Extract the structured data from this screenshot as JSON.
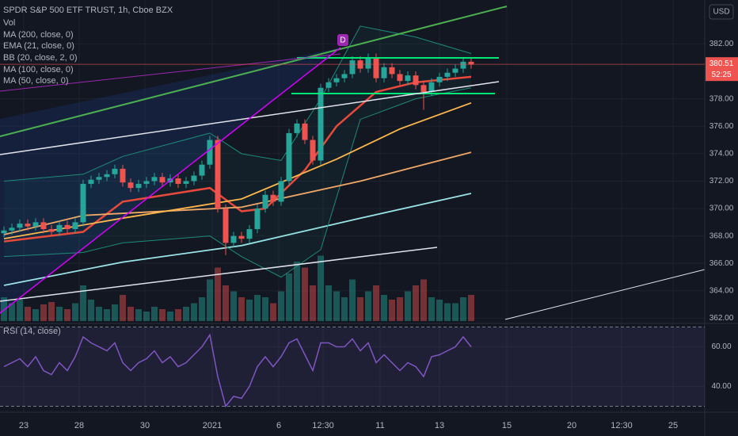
{
  "chart_data": {
    "type": "candlestick",
    "title": "SPDR S&P 500 ETF TRUST, 1h, Cboe BZX",
    "currency": "USD",
    "marker": "D",
    "up_color": "#26a69a",
    "down_color": "#ef5350",
    "grid": true,
    "xlim": [
      -0.5,
      88.5
    ],
    "xticks": [
      {
        "value": 2.5,
        "label": "23"
      },
      {
        "value": 9.5,
        "label": "28"
      },
      {
        "value": 17.8,
        "label": "30"
      },
      {
        "value": 26.3,
        "label": "2021"
      },
      {
        "value": 34.7,
        "label": "6"
      },
      {
        "value": 40.3,
        "label": "12:30"
      },
      {
        "value": 47.5,
        "label": "11"
      },
      {
        "value": 55,
        "label": "13"
      },
      {
        "value": 63.5,
        "label": "15"
      },
      {
        "value": 71.7,
        "label": "20"
      },
      {
        "value": 78,
        "label": "12:30"
      },
      {
        "value": 84.5,
        "label": "25"
      }
    ],
    "ylim": [
      361.8,
      385.2
    ],
    "yticks": [
      {
        "value": 362,
        "label": "362.00"
      },
      {
        "value": 364,
        "label": "364.00"
      },
      {
        "value": 366,
        "label": "366.00"
      },
      {
        "value": 368,
        "label": "368.00"
      },
      {
        "value": 370,
        "label": "370.00"
      },
      {
        "value": 372,
        "label": "372.00"
      },
      {
        "value": 374,
        "label": "374.00"
      },
      {
        "value": 376,
        "label": "376.00"
      },
      {
        "value": 378,
        "label": "378.00"
      },
      {
        "value": 382,
        "label": "382.00"
      }
    ],
    "last_price": 380.51,
    "countdown": "52:25",
    "open": [
      368.2,
      368.4,
      368.6,
      368.9,
      368.7,
      369.0,
      368.5,
      368.3,
      368.8,
      368.5,
      369.0,
      371.8,
      372.1,
      372.3,
      372.5,
      372.9,
      371.9,
      371.5,
      371.8,
      372.0,
      372.3,
      371.9,
      372.2,
      371.8,
      372.0,
      372.4,
      373.2,
      375.0,
      370.0,
      367.5,
      368.0,
      367.8,
      368.5,
      370.0,
      371.0,
      370.5,
      372.0,
      375.5,
      376.2,
      375.0,
      373.5,
      378.8,
      379.2,
      379.5,
      379.8,
      380.8,
      380.2,
      381.0,
      379.5,
      380.3,
      379.8,
      379.3,
      379.7,
      379.0,
      378.5,
      379.2,
      379.6,
      379.9,
      380.2,
      380.7
    ],
    "high": [
      368.7,
      368.9,
      369.2,
      369.2,
      369.3,
      369.3,
      368.8,
      369.1,
      369.1,
      369.3,
      372.1,
      372.4,
      372.6,
      372.8,
      373.2,
      373.2,
      372.2,
      372.1,
      372.3,
      372.6,
      372.6,
      372.5,
      372.5,
      372.3,
      372.7,
      373.5,
      375.3,
      375.3,
      370.3,
      368.3,
      368.3,
      368.8,
      370.3,
      371.3,
      371.3,
      372.3,
      375.8,
      376.5,
      376.5,
      375.3,
      379.1,
      379.5,
      379.8,
      380.1,
      381.1,
      381.1,
      381.3,
      381.3,
      380.6,
      380.6,
      380.1,
      380.0,
      380.0,
      379.3,
      379.5,
      379.9,
      380.2,
      380.5,
      381.0,
      381.0
    ],
    "low": [
      367.9,
      368.1,
      368.3,
      368.4,
      368.4,
      368.2,
      368.0,
      368.0,
      368.2,
      368.2,
      368.7,
      371.5,
      371.8,
      372.0,
      372.2,
      371.6,
      371.2,
      371.2,
      371.5,
      371.7,
      371.6,
      371.6,
      371.5,
      371.5,
      371.7,
      372.1,
      372.9,
      369.7,
      366.6,
      367.2,
      367.5,
      367.5,
      368.2,
      369.7,
      370.2,
      370.2,
      371.7,
      375.2,
      374.7,
      373.2,
      373.2,
      378.5,
      378.9,
      379.2,
      379.5,
      379.9,
      379.9,
      379.2,
      379.2,
      379.5,
      379.0,
      379.0,
      378.7,
      377.2,
      378.2,
      378.9,
      379.3,
      379.6,
      379.9,
      380.2
    ],
    "close": [
      368.4,
      368.6,
      368.9,
      368.7,
      369.0,
      368.5,
      368.3,
      368.8,
      368.5,
      369.0,
      371.8,
      372.1,
      372.3,
      372.5,
      372.9,
      371.9,
      371.5,
      371.8,
      372.0,
      372.3,
      371.9,
      372.2,
      371.8,
      372.0,
      372.4,
      373.2,
      375.0,
      370.0,
      367.5,
      368.0,
      367.8,
      368.5,
      370.0,
      371.0,
      370.5,
      372.0,
      375.5,
      376.2,
      375.0,
      373.5,
      378.8,
      379.2,
      379.5,
      379.8,
      380.8,
      380.2,
      381.0,
      379.5,
      380.3,
      379.8,
      379.3,
      379.7,
      379.0,
      378.5,
      379.2,
      379.6,
      379.9,
      380.2,
      380.7,
      380.5
    ],
    "volume": {
      "name": "Vol",
      "ylim": [
        0,
        100
      ],
      "values": [
        20,
        15,
        18,
        12,
        10,
        14,
        16,
        12,
        10,
        15,
        30,
        18,
        12,
        10,
        14,
        22,
        12,
        10,
        8,
        12,
        10,
        8,
        10,
        12,
        15,
        20,
        35,
        45,
        30,
        25,
        20,
        18,
        22,
        20,
        15,
        25,
        40,
        50,
        45,
        30,
        55,
        30,
        25,
        20,
        35,
        20,
        25,
        30,
        22,
        18,
        20,
        25,
        30,
        35,
        20,
        18,
        15,
        15,
        20,
        22
      ]
    },
    "overlays": [
      {
        "name": "MA (200, close, 0)",
        "color": "#9be3e6",
        "x": [
          0,
          15,
          30,
          45,
          59
        ],
        "values": [
          364.4,
          366.1,
          367.3,
          369.3,
          371.1
        ]
      },
      {
        "name": "EMA (21, close, 0)",
        "color": "#f44336",
        "x": [
          0,
          10,
          15,
          26,
          30,
          33,
          38,
          42,
          47,
          52,
          59
        ],
        "values": [
          367.6,
          368.3,
          370.5,
          371.5,
          369.8,
          370.0,
          372.8,
          376.0,
          378.5,
          379.2,
          379.6
        ]
      },
      {
        "name": "BB (20, close, 2, 0)",
        "color": "#1e8a7a",
        "x": [
          0,
          10,
          15,
          26,
          30,
          35,
          40,
          45,
          52,
          59
        ],
        "upper": [
          372.0,
          372.5,
          373.8,
          375.5,
          374.0,
          373.5,
          378.0,
          383.3,
          382.5,
          381.3
        ],
        "lower": [
          366.5,
          366.8,
          367.5,
          368.0,
          366.5,
          365.0,
          367.0,
          376.5,
          378.0,
          378.8
        ]
      },
      {
        "name": "MA (100, close, 0)",
        "color": "#f0a868",
        "x": [
          0,
          10,
          30,
          45,
          59
        ],
        "values": [
          368.1,
          369.5,
          370.1,
          372.0,
          374.1
        ]
      },
      {
        "name": "MA (50, close, 0)",
        "color": "#ffb74d",
        "x": [
          0,
          15,
          30,
          42,
          50,
          59
        ],
        "values": [
          367.8,
          369.3,
          370.7,
          373.6,
          375.8,
          377.7
        ]
      }
    ],
    "rsi": {
      "name": "RSI (14, close)",
      "color": "#7e57c2",
      "ylim": [
        29,
        71
      ],
      "bounds": [
        30,
        70
      ],
      "yticks": [
        {
          "value": 40,
          "label": "40.00"
        },
        {
          "value": 60,
          "label": "60.00"
        }
      ],
      "values": [
        50,
        52,
        54,
        50,
        55,
        48,
        46,
        52,
        48,
        55,
        65,
        62,
        60,
        58,
        62,
        52,
        48,
        52,
        54,
        58,
        52,
        55,
        50,
        52,
        56,
        60,
        66,
        45,
        30,
        35,
        34,
        40,
        50,
        55,
        50,
        55,
        62,
        64,
        56,
        48,
        62,
        62,
        60,
        60,
        64,
        58,
        62,
        52,
        56,
        52,
        48,
        52,
        50,
        45,
        55,
        56,
        58,
        60,
        65,
        60
      ]
    }
  }
}
